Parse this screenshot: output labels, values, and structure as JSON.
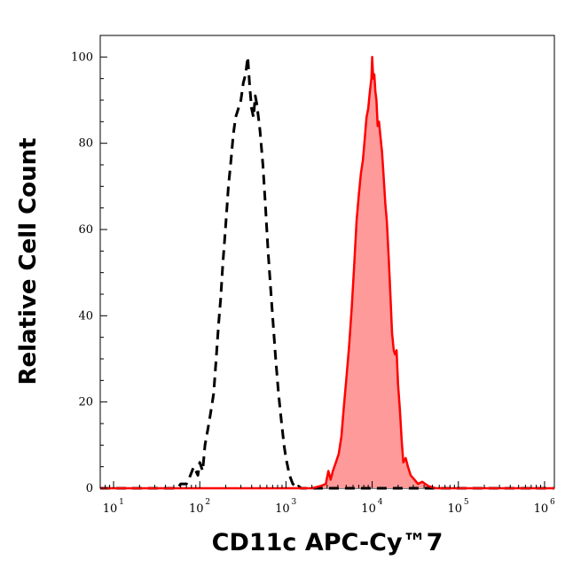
{
  "chart_data": {
    "type": "area",
    "xlabel": "CD11c APC-Cy™7",
    "ylabel": "Relative Cell Count",
    "x_scale": "log10",
    "xlim": [
      7,
      1300000
    ],
    "ylim": [
      0,
      105
    ],
    "x_ticks": [
      {
        "base": "10",
        "exp": "1",
        "value": 10
      },
      {
        "base": "10",
        "exp": "2",
        "value": 100
      },
      {
        "base": "10",
        "exp": "3",
        "value": 1000
      },
      {
        "base": "10",
        "exp": "4",
        "value": 10000
      },
      {
        "base": "10",
        "exp": "5",
        "value": 100000
      },
      {
        "base": "10",
        "exp": "6",
        "value": 1000000
      }
    ],
    "y_ticks": [
      0,
      20,
      40,
      60,
      80,
      100
    ],
    "grid": false,
    "series": [
      {
        "style": "dashed",
        "color": "#000000",
        "fill": "none",
        "points": [
          [
            7,
            0
          ],
          [
            40,
            0
          ],
          [
            55,
            0
          ],
          [
            60,
            1
          ],
          [
            70,
            1
          ],
          [
            78,
            3
          ],
          [
            85,
            5
          ],
          [
            90,
            4
          ],
          [
            95,
            3
          ],
          [
            100,
            6
          ],
          [
            108,
            4
          ],
          [
            115,
            10
          ],
          [
            125,
            14
          ],
          [
            130,
            16
          ],
          [
            140,
            20
          ],
          [
            145,
            22
          ],
          [
            155,
            30
          ],
          [
            165,
            38
          ],
          [
            175,
            44
          ],
          [
            185,
            52
          ],
          [
            195,
            58
          ],
          [
            205,
            64
          ],
          [
            215,
            70
          ],
          [
            230,
            76
          ],
          [
            245,
            82
          ],
          [
            260,
            86
          ],
          [
            280,
            88
          ],
          [
            300,
            90
          ],
          [
            320,
            94
          ],
          [
            340,
            96
          ],
          [
            360,
            100
          ],
          [
            380,
            93
          ],
          [
            400,
            88
          ],
          [
            420,
            86
          ],
          [
            440,
            91
          ],
          [
            460,
            89
          ],
          [
            500,
            83
          ],
          [
            540,
            75
          ],
          [
            580,
            65
          ],
          [
            620,
            55
          ],
          [
            660,
            47
          ],
          [
            700,
            40
          ],
          [
            760,
            30
          ],
          [
            820,
            22
          ],
          [
            880,
            16
          ],
          [
            950,
            10
          ],
          [
            1000,
            7
          ],
          [
            1100,
            3
          ],
          [
            1200,
            1
          ],
          [
            1350,
            0
          ],
          [
            1400,
            0.5
          ],
          [
            1500,
            0
          ],
          [
            2000,
            0
          ],
          [
            1300000,
            0
          ]
        ]
      },
      {
        "style": "solid",
        "color": "#ff0000",
        "fill": "#ff9a9a",
        "points": [
          [
            7,
            0
          ],
          [
            1200,
            0
          ],
          [
            2000,
            0
          ],
          [
            2500,
            0.5
          ],
          [
            2900,
            1
          ],
          [
            3100,
            4
          ],
          [
            3300,
            2
          ],
          [
            3500,
            4
          ],
          [
            3800,
            6
          ],
          [
            4100,
            8
          ],
          [
            4400,
            12
          ],
          [
            4700,
            19
          ],
          [
            5000,
            25
          ],
          [
            5400,
            33
          ],
          [
            5800,
            42
          ],
          [
            6200,
            52
          ],
          [
            6600,
            62
          ],
          [
            7000,
            68
          ],
          [
            7400,
            73
          ],
          [
            7800,
            76
          ],
          [
            8200,
            81
          ],
          [
            8600,
            86
          ],
          [
            9000,
            88
          ],
          [
            9400,
            92
          ],
          [
            9800,
            95
          ],
          [
            10000,
            100
          ],
          [
            10300,
            95
          ],
          [
            10600,
            96
          ],
          [
            10900,
            92
          ],
          [
            11200,
            90
          ],
          [
            11600,
            84
          ],
          [
            12000,
            85
          ],
          [
            12400,
            82
          ],
          [
            13000,
            78
          ],
          [
            13600,
            72
          ],
          [
            14200,
            66
          ],
          [
            14800,
            62
          ],
          [
            15500,
            54
          ],
          [
            16200,
            46
          ],
          [
            17000,
            36
          ],
          [
            17800,
            32
          ],
          [
            18500,
            31
          ],
          [
            19200,
            32
          ],
          [
            20000,
            24
          ],
          [
            21000,
            18
          ],
          [
            22000,
            11
          ],
          [
            23000,
            6
          ],
          [
            24500,
            7
          ],
          [
            26000,
            5
          ],
          [
            28000,
            3
          ],
          [
            31000,
            2
          ],
          [
            34000,
            1
          ],
          [
            38000,
            1.5
          ],
          [
            45000,
            0.5
          ],
          [
            55000,
            0
          ],
          [
            1300000,
            0
          ]
        ]
      }
    ]
  }
}
